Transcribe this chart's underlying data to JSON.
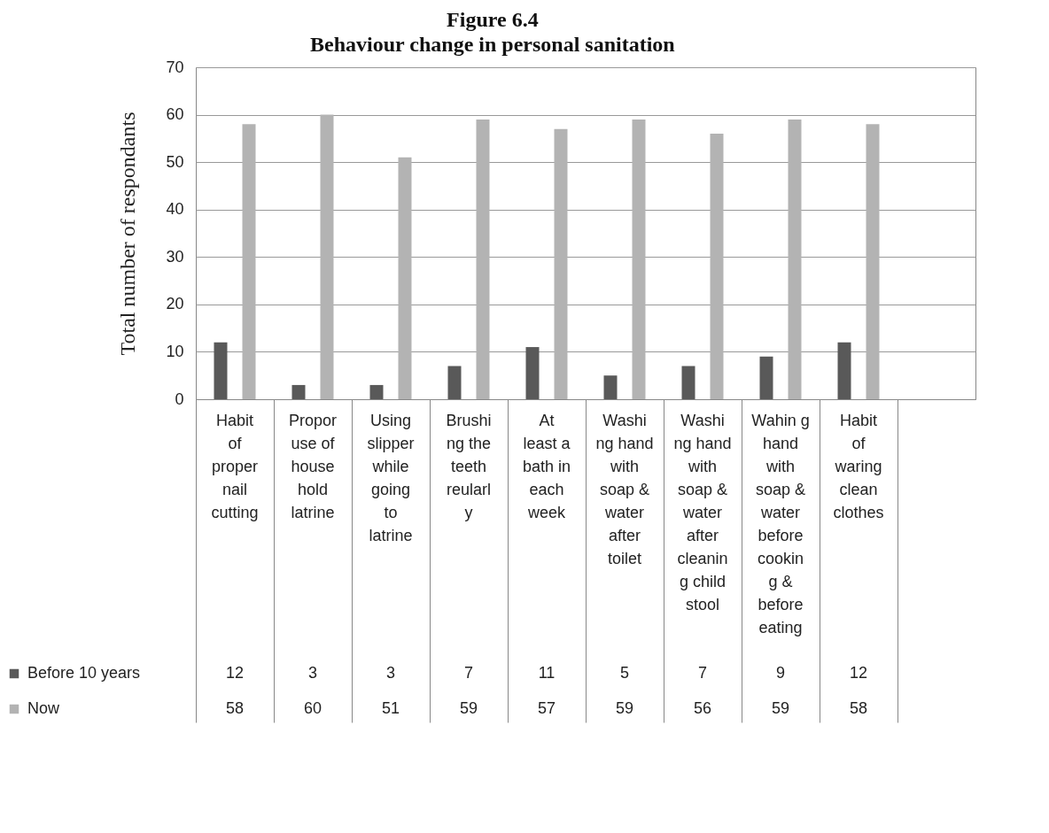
{
  "chart_data": {
    "type": "bar",
    "title": "Figure 6.4",
    "subtitle": "Behaviour change in personal sanitation",
    "ylabel": "Total number of respondants",
    "categories": [
      "Habit of proper nail cutting",
      "Propor use of house hold latrine",
      "Using slipper while going to latrine",
      "Brushi ng the teeth reularl y",
      "At least a bath in each week",
      "Washi ng hand with soap & water after toilet",
      "Washi ng hand with soap & water after cleanin g child stool",
      "Wahin g hand with soap & water before cookin g & before eating",
      "Habit of waring clean clothes",
      null
    ],
    "series": [
      {
        "name": "Before 10 years",
        "color": "#595959",
        "values": [
          12,
          3,
          3,
          7,
          11,
          5,
          7,
          9,
          12,
          null
        ]
      },
      {
        "name": "Now",
        "color": "#b3b3b3",
        "values": [
          58,
          60,
          51,
          59,
          57,
          59,
          56,
          59,
          58,
          null
        ]
      }
    ],
    "ylim": [
      0,
      70
    ],
    "yticks": [
      0,
      10,
      20,
      30,
      40,
      50,
      60,
      70
    ],
    "grid": "y",
    "legend": "bottom",
    "data_labels": true
  }
}
